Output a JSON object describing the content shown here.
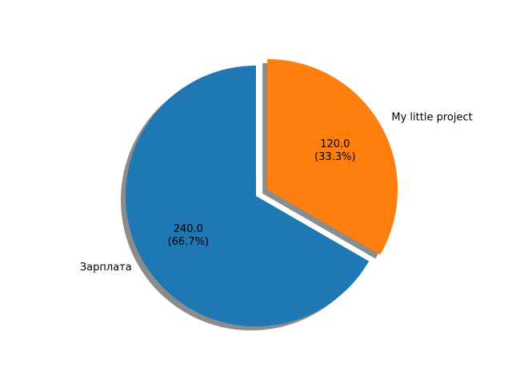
{
  "chart_data": {
    "type": "pie",
    "title": "",
    "startangle": 90,
    "shadow": true,
    "slices": [
      {
        "label": "Зарплата",
        "value": 240.0,
        "percent": 66.7,
        "value_text": "240.0",
        "percent_text": "(66.7%)",
        "color": "#1f77b4",
        "explode": 0
      },
      {
        "label": "My little project",
        "value": 120.0,
        "percent": 33.3,
        "value_text": "120.0",
        "percent_text": "(33.3%)",
        "color": "#ff7f0e",
        "explode": 0.1
      }
    ]
  }
}
